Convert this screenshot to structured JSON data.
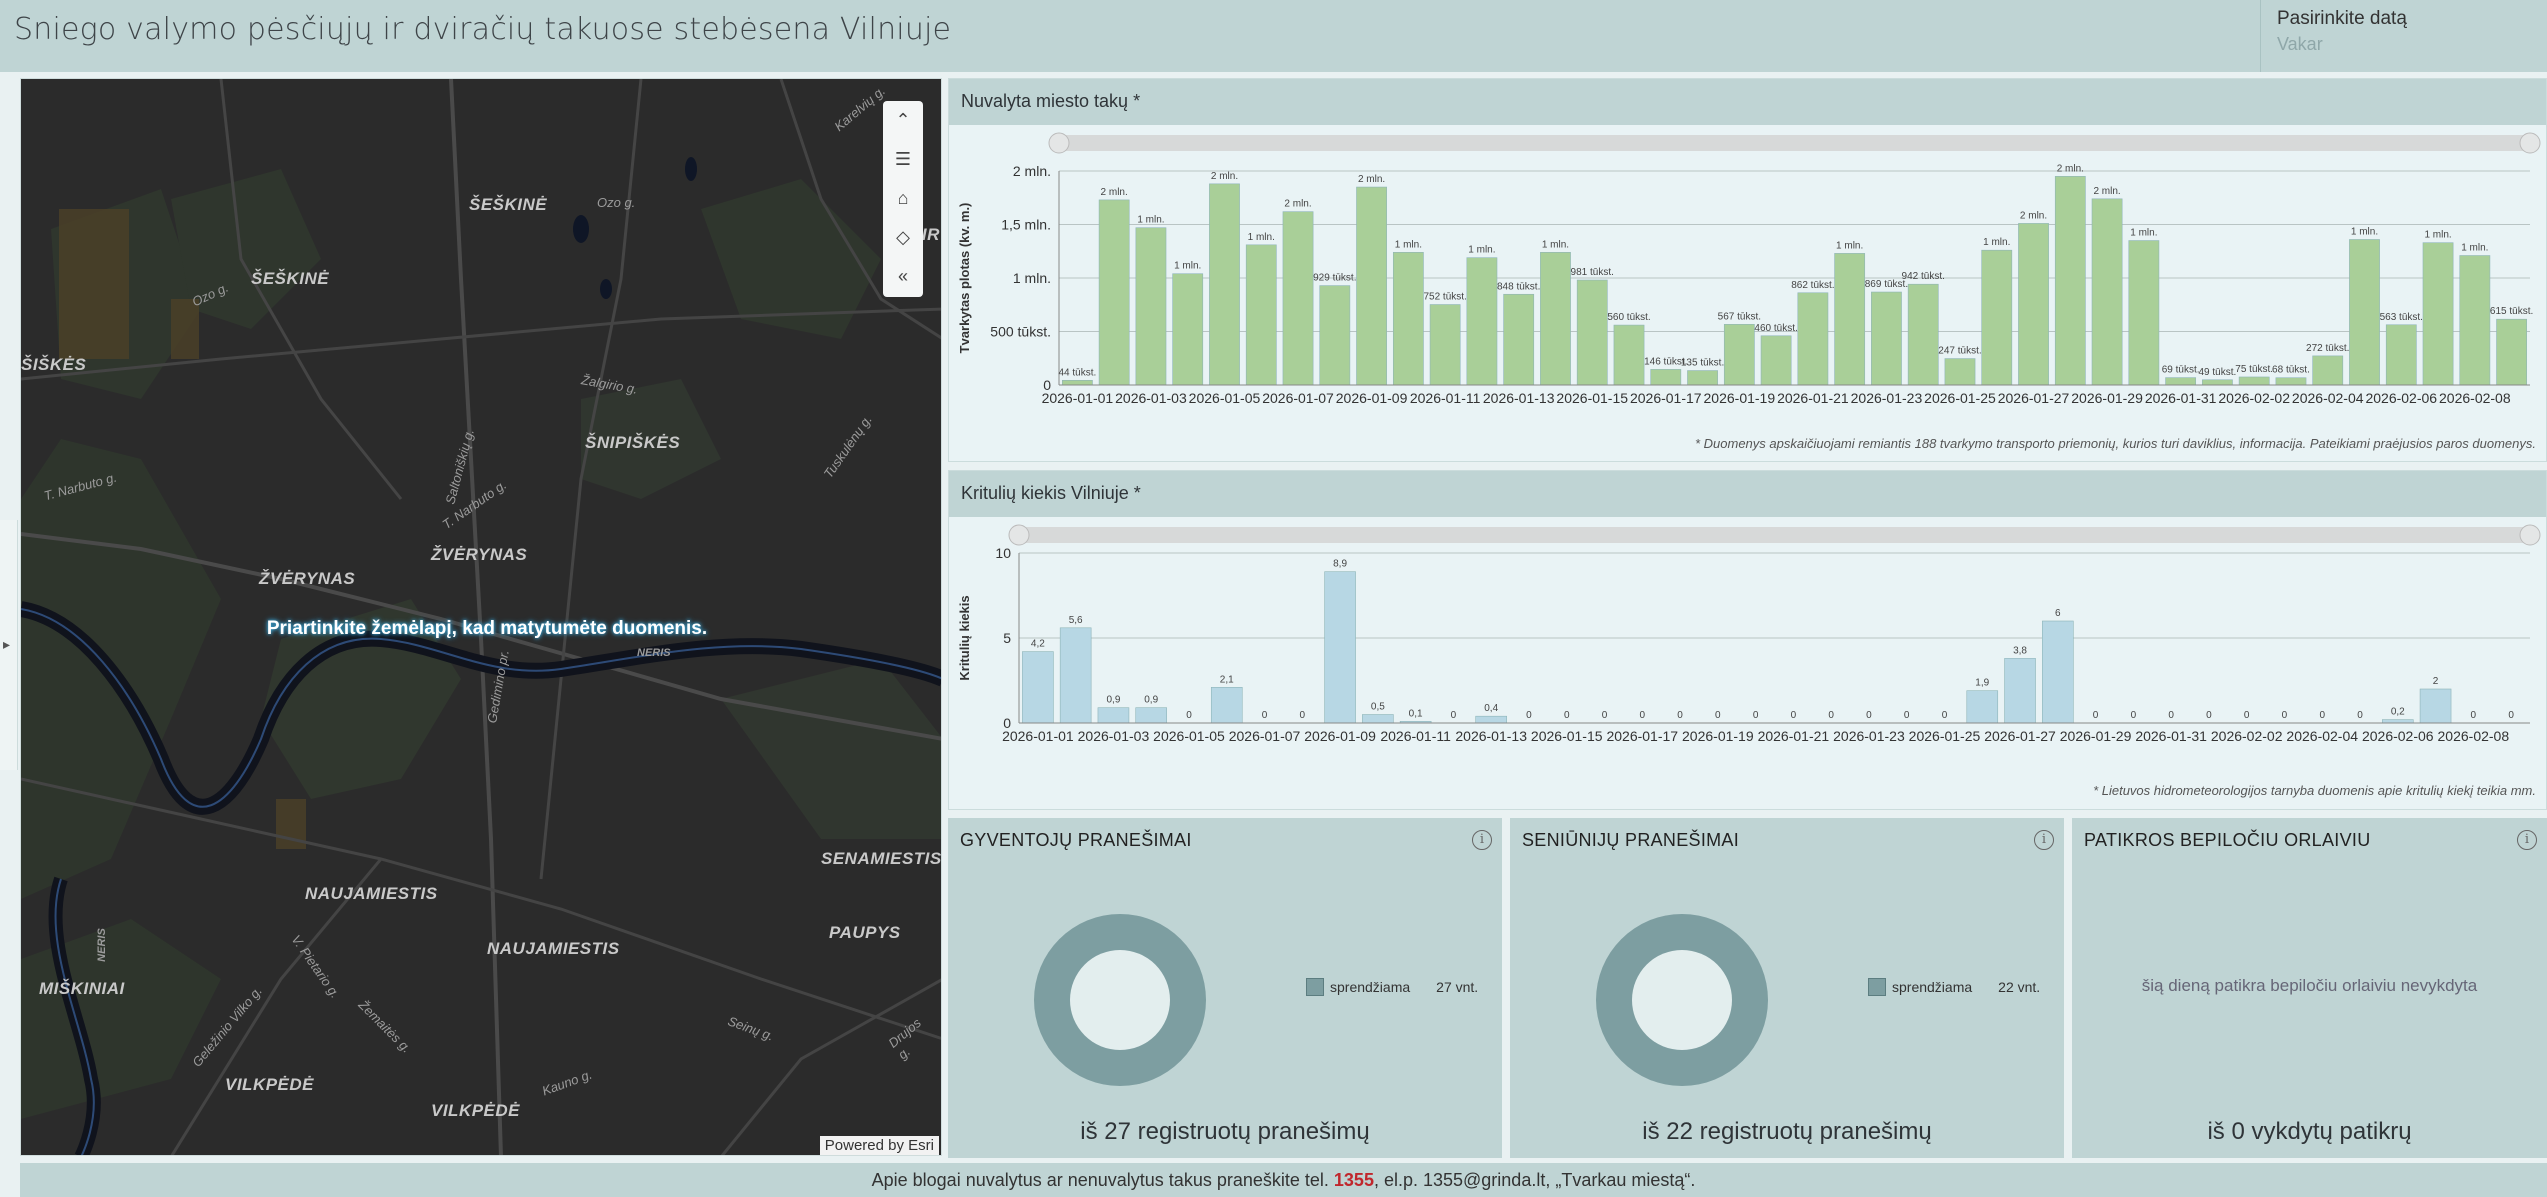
{
  "header": {
    "title": "Sniego valymo pėsčiųjų ir dviračių takuose stebėsena Vilniuje",
    "date_label": "Pasirinkite datą",
    "date_value": "Vakar"
  },
  "map": {
    "message": "Priartinkite žemėlapį, kad matytumėte duomenis.",
    "attribution": "Powered by Esri",
    "toolbar": [
      "collapse-icon",
      "legend-icon",
      "home-icon",
      "layers-icon",
      "expand-icon"
    ],
    "labels": [
      "ŠEŠKINĖ",
      "ŠEŠKINĖ",
      "ŠIŠKĖS",
      "ŠNIPIŠKĖS",
      "ŽVĖRYNAS",
      "ŽVĖRYNAS",
      "NAUJAMIESTIS",
      "NAUJAMIESTIS",
      "SENAMIESTIS",
      "PAUPYS",
      "MIŠKINIAI",
      "VILKPĖDĖ",
      "VILKPĖDĖ",
      "ŽIR"
    ],
    "streets": [
      "Ozo g.",
      "Ozo g.",
      "Karelvių g.",
      "Žalgirio g.",
      "Saltoniškių g.",
      "T. Narbuto g.",
      "T. Narbuto g.",
      "Tuskulėnų g.",
      "NERIS",
      "Gedimino pr.",
      "NERIS",
      "V. Pietario g.",
      "Geležinio Vilko g.",
      "Žemaitės g.",
      "Kauno g.",
      "Seinų g.",
      "Drujos g."
    ]
  },
  "charts": {
    "cleaned": {
      "title": "Nuvalyta miesto takų *",
      "footnote": "* Duomenys apskaičiuojami remiantis 188 tvarkymo transporto priemonių, kurios turi daviklius, informacija. Pateikiami praėjusios paros duomenys."
    },
    "precip": {
      "title": "Kritulių kiekis Vilniuje *",
      "footnote": "* Lietuvos hidrometeorologijos tarnyba duomenis apie kritulių kiekį teikia mm."
    }
  },
  "chart_data": [
    {
      "type": "bar",
      "title": "Nuvalyta miesto takų *",
      "ylabel": "Tvarkytas plotas (kv. m.)",
      "xlabel": "",
      "ylim": [
        0,
        2000000
      ],
      "yticks": [
        0,
        500000,
        1000000,
        1500000,
        2000000
      ],
      "ytick_labels": [
        "0",
        "500 tūkst.",
        "1 mln.",
        "1,5 mln.",
        "2 mln."
      ],
      "color": "#a9cf98",
      "categories": [
        "2026-01-01",
        "2026-01-02",
        "2026-01-03",
        "2026-01-04",
        "2026-01-05",
        "2026-01-06",
        "2026-01-07",
        "2026-01-08",
        "2026-01-09",
        "2026-01-10",
        "2026-01-11",
        "2026-01-12",
        "2026-01-13",
        "2026-01-14",
        "2026-01-15",
        "2026-01-16",
        "2026-01-17",
        "2026-01-18",
        "2026-01-19",
        "2026-01-20",
        "2026-01-21",
        "2026-01-22",
        "2026-01-23",
        "2026-01-24",
        "2026-01-25",
        "2026-01-26",
        "2026-01-27",
        "2026-01-28",
        "2026-01-29",
        "2026-01-30",
        "2026-01-31",
        "2026-02-01",
        "2026-02-02",
        "2026-02-03",
        "2026-02-04",
        "2026-02-05",
        "2026-02-06",
        "2026-02-07",
        "2026-02-08",
        "2026-02-09"
      ],
      "values": [
        44000,
        1730000,
        1470000,
        1040000,
        1880000,
        1310000,
        1620000,
        929000,
        1850000,
        1240000,
        752000,
        1190000,
        848000,
        1240000,
        981000,
        560000,
        146000,
        135000,
        567000,
        460000,
        862000,
        1230000,
        869000,
        942000,
        247000,
        1260000,
        1510000,
        1950000,
        1740000,
        1350000,
        69000,
        49000,
        75000,
        68000,
        272000,
        1360000,
        563000,
        1330000,
        1210000,
        615000
      ],
      "data_labels": [
        "44 tūkst.",
        "2 mln.",
        "1 mln.",
        "1 mln.",
        "2 mln.",
        "1 mln.",
        "2 mln.",
        "929 tūkst.",
        "2 mln.",
        "1 mln.",
        "752 tūkst.",
        "1 mln.",
        "848 tūkst.",
        "1 mln.",
        "981 tūkst.",
        "560 tūkst.",
        "146 tūkst.",
        "135 tūkst.",
        "567 tūkst.",
        "460 tūkst.",
        "862 tūkst.",
        "1 mln.",
        "869 tūkst.",
        "942 tūkst.",
        "247 tūkst.",
        "1 mln.",
        "2 mln.",
        "2 mln.",
        "2 mln.",
        "1 mln.",
        "69 tūkst.",
        "49 tūkst.",
        "75 tūkst.",
        "68 tūkst.",
        "272 tūkst.",
        "1 mln.",
        "563 tūkst.",
        "1 mln.",
        "1 mln.",
        "615 tūkst."
      ],
      "xtick_labels": [
        "2026-01-01",
        "2026-01-03",
        "2026-01-05",
        "2026-01-07",
        "2026-01-09",
        "2026-01-11",
        "2026-01-13",
        "2026-01-15",
        "2026-01-17",
        "2026-01-19",
        "2026-01-21",
        "2026-01-23",
        "2026-01-25",
        "2026-01-27",
        "2026-01-29",
        "2026-01-31",
        "2026-02-02",
        "2026-02-04",
        "2026-02-06",
        "2026-02-08"
      ],
      "grid": true
    },
    {
      "type": "bar",
      "title": "Kritulių kiekis Vilniuje *",
      "ylabel": "Kritulių kiekis",
      "xlabel": "",
      "ylim": [
        0,
        10
      ],
      "yticks": [
        0,
        5,
        10
      ],
      "ytick_labels": [
        "0",
        "5",
        "10"
      ],
      "color": "#b7d7e4",
      "categories": [
        "2026-01-01",
        "2026-01-02",
        "2026-01-03",
        "2026-01-04",
        "2026-01-05",
        "2026-01-06",
        "2026-01-07",
        "2026-01-08",
        "2026-01-09",
        "2026-01-10",
        "2026-01-11",
        "2026-01-12",
        "2026-01-13",
        "2026-01-14",
        "2026-01-15",
        "2026-01-16",
        "2026-01-17",
        "2026-01-18",
        "2026-01-19",
        "2026-01-20",
        "2026-01-21",
        "2026-01-22",
        "2026-01-23",
        "2026-01-24",
        "2026-01-25",
        "2026-01-26",
        "2026-01-27",
        "2026-01-28",
        "2026-01-29",
        "2026-01-30",
        "2026-01-31",
        "2026-02-01",
        "2026-02-02",
        "2026-02-03",
        "2026-02-04",
        "2026-02-05",
        "2026-02-06",
        "2026-02-07",
        "2026-02-08",
        "2026-02-09"
      ],
      "values": [
        4.2,
        5.6,
        0.9,
        0.9,
        0,
        2.1,
        0,
        0,
        8.9,
        0.5,
        0.1,
        0,
        0.4,
        0,
        0,
        0,
        0,
        0,
        0,
        0,
        0,
        0,
        0,
        0,
        0,
        1.9,
        3.8,
        6,
        0,
        0,
        0,
        0,
        0,
        0,
        0,
        0,
        0.2,
        2,
        0,
        0
      ],
      "data_labels": [
        "4,2",
        "5,6",
        "0,9",
        "0,9",
        "0",
        "2,1",
        "0",
        "0",
        "8,9",
        "0,5",
        "0,1",
        "0",
        "0,4",
        "0",
        "0",
        "0",
        "0",
        "0",
        "0",
        "0",
        "0",
        "0",
        "0",
        "0",
        "0",
        "1,9",
        "3,8",
        "6",
        "0",
        "0",
        "0",
        "0",
        "0",
        "0",
        "0",
        "0",
        "0,2",
        "2",
        "0",
        "0"
      ],
      "xtick_labels": [
        "2026-01-01",
        "2026-01-03",
        "2026-01-05",
        "2026-01-07",
        "2026-01-09",
        "2026-01-11",
        "2026-01-13",
        "2026-01-15",
        "2026-01-17",
        "2026-01-19",
        "2026-01-21",
        "2026-01-23",
        "2026-01-25",
        "2026-01-27",
        "2026-01-29",
        "2026-01-31",
        "2026-02-02",
        "2026-02-04",
        "2026-02-06",
        "2026-02-08"
      ],
      "grid": true
    },
    {
      "type": "pie",
      "title": "GYVENTOJŲ PRANEŠIMAI",
      "categories": [
        "sprendžiama"
      ],
      "values": [
        27
      ],
      "legend_counts": [
        "27 vnt."
      ]
    },
    {
      "type": "pie",
      "title": "SENIŪNIJŲ PRANEŠIMAI",
      "categories": [
        "sprendžiama"
      ],
      "values": [
        22
      ],
      "legend_counts": [
        "22 vnt."
      ]
    }
  ],
  "cards": [
    {
      "title": "GYVENTOJŲ PRANEŠIMAI",
      "legend": "sprendžiama",
      "count": "27 vnt.",
      "footer": "iš 27 registruotų pranešimų"
    },
    {
      "title": "SENIŪNIJŲ PRANEŠIMAI",
      "legend": "sprendžiama",
      "count": "22 vnt.",
      "footer": "iš 22 registruotų pranešimų"
    },
    {
      "title": "PATIKROS BEPILOČIU ORLAIVIU",
      "empty": "šią dieną patikra bepiločiu orlaiviu nevykdyta",
      "footer": "iš 0 vykdytų patikrų"
    }
  ],
  "footer": {
    "before": "Apie blogai nuvalytus ar nenuvalytus takus praneškite tel. ",
    "phone": "1355",
    "after": ", el.p. 1355@grinda.lt, „Tvarkau miestą“."
  },
  "colors": {
    "header_bg": "#bfd4d4",
    "cleaned_bar": "#a9cf98",
    "precip_bar": "#b7d7e4",
    "donut": "#7d9ea1",
    "phone": "#c0272d"
  }
}
